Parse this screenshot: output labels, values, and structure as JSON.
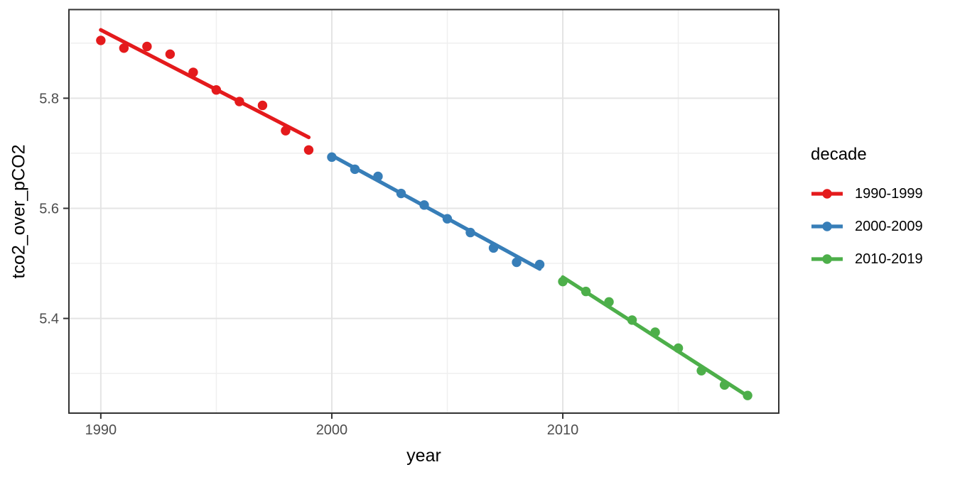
{
  "chart_data": {
    "type": "scatter",
    "title": "",
    "xlabel": "year",
    "ylabel": "tco2_over_pCO2",
    "legend_title": "decade",
    "legend_position": "right",
    "grid": true,
    "xlim": [
      1988.62,
      2019.35
    ],
    "ylim": [
      5.228,
      5.961
    ],
    "x_ticks": [
      1990,
      2000,
      2010
    ],
    "x_tick_labels": [
      "1990",
      "2000",
      "2010"
    ],
    "x_minor_ticks": [
      1995,
      2005,
      2015
    ],
    "y_ticks": [
      5.8,
      5.6,
      5.4
    ],
    "y_tick_labels": [
      "5.8",
      "5.6",
      "5.4"
    ],
    "y_minor_ticks": [
      5.9,
      5.7,
      5.5,
      5.3
    ],
    "series": [
      {
        "name": "1990-1999",
        "color": "#E41A1C",
        "x": [
          1990,
          1991,
          1992,
          1993,
          1994,
          1995,
          1996,
          1997,
          1998,
          1999
        ],
        "y": [
          5.905,
          5.891,
          5.894,
          5.88,
          5.847,
          5.815,
          5.794,
          5.787,
          5.741,
          5.706
        ],
        "trend": {
          "x1": 1990,
          "y1": 5.924,
          "x2": 1999,
          "y2": 5.729
        }
      },
      {
        "name": "2000-2009",
        "color": "#377EB8",
        "x": [
          2000,
          2001,
          2002,
          2003,
          2004,
          2005,
          2006,
          2007,
          2008,
          2009
        ],
        "y": [
          5.693,
          5.671,
          5.658,
          5.627,
          5.606,
          5.581,
          5.556,
          5.528,
          5.502,
          5.498
        ],
        "trend": {
          "x1": 2000,
          "y1": 5.696,
          "x2": 2009,
          "y2": 5.49
        }
      },
      {
        "name": "2010-2019",
        "color": "#4DAF4A",
        "x": [
          2010,
          2011,
          2012,
          2013,
          2014,
          2015,
          2016,
          2017,
          2018
        ],
        "y": [
          5.467,
          5.449,
          5.43,
          5.397,
          5.375,
          5.346,
          5.305,
          5.279,
          5.26
        ],
        "trend": {
          "x1": 2010,
          "y1": 5.475,
          "x2": 2018,
          "y2": 5.259
        }
      }
    ],
    "style": {
      "panel_border_color": "#333333",
      "major_grid_color": "#e4e4e4",
      "minor_grid_color": "#efefef",
      "tick_color": "#333333",
      "tick_label_color": "#4d4d4d",
      "axis_title_color": "#000000",
      "point_radius": 6.7,
      "trend_width": 5.3
    }
  }
}
